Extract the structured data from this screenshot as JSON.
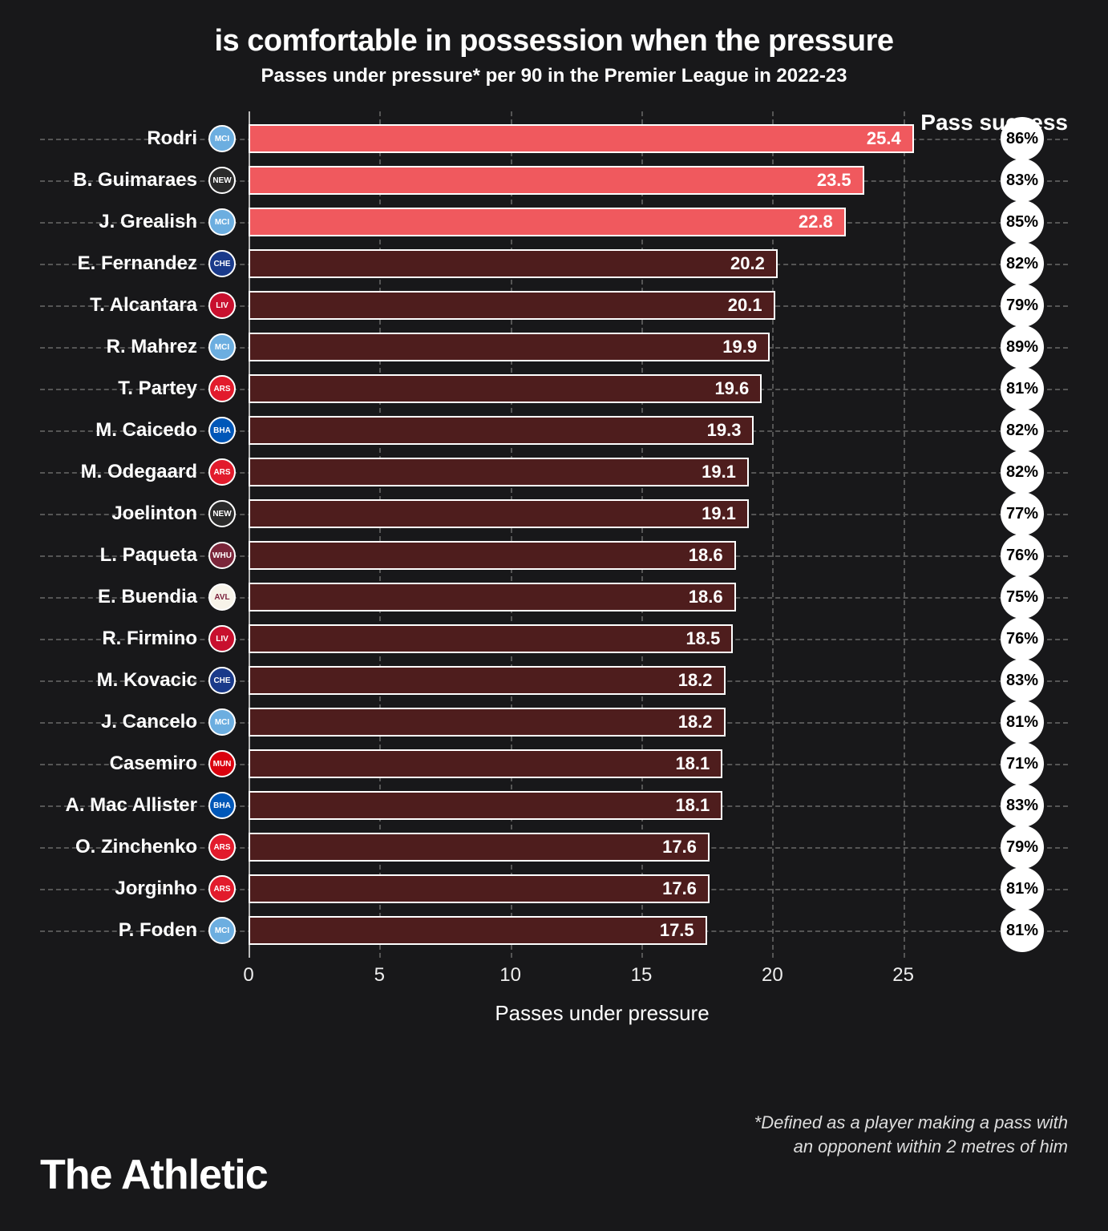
{
  "title": "is comfortable in possession when the pressure",
  "subtitle": "Passes under pressure* per 90 in the Premier League in 2022-23",
  "pass_success_header": "Pass success",
  "x_axis_label": "Passes under pressure",
  "footnote_line1": "*Defined as a player making a pass with",
  "footnote_line2": "an opponent within 2 metres of him",
  "brand": "The Athletic",
  "chart": {
    "type": "bar-horizontal",
    "x_min": 0,
    "x_max": 27,
    "x_ticks": [
      0,
      5,
      10,
      15,
      20,
      25
    ],
    "bar_border_color": "#ffffff",
    "grid_color": "#555555",
    "background_color": "#18181a",
    "highlight_color": "#f0595e",
    "normal_color": "#4e1d1d",
    "badge_bg": "#ffffff",
    "badge_text": "#000000",
    "bar_label_fontsize": 22,
    "player_label_fontsize": 24
  },
  "clubs": {
    "mancity": {
      "bg": "#6caee0",
      "abbr": "MCI"
    },
    "newcastle": {
      "bg": "#2b2b2b",
      "abbr": "NEW"
    },
    "chelsea": {
      "bg": "#1a3a8a",
      "abbr": "CHE"
    },
    "liverpool": {
      "bg": "#c8102e",
      "abbr": "LIV"
    },
    "arsenal": {
      "bg": "#e21b2c",
      "abbr": "ARS"
    },
    "brighton": {
      "bg": "#0057b8",
      "abbr": "BHA"
    },
    "westham": {
      "bg": "#7a263a",
      "abbr": "WHU"
    },
    "villa": {
      "bg": "#f7f3e9",
      "abbr": "AVL"
    },
    "manutd": {
      "bg": "#da020e",
      "abbr": "MUN"
    }
  },
  "players": [
    {
      "name": "Rodri",
      "club": "mancity",
      "value": 25.4,
      "success": "86%",
      "highlight": true
    },
    {
      "name": "B. Guimaraes",
      "club": "newcastle",
      "value": 23.5,
      "success": "83%",
      "highlight": true
    },
    {
      "name": "J. Grealish",
      "club": "mancity",
      "value": 22.8,
      "success": "85%",
      "highlight": true
    },
    {
      "name": "E. Fernandez",
      "club": "chelsea",
      "value": 20.2,
      "success": "82%",
      "highlight": false
    },
    {
      "name": "T. Alcantara",
      "club": "liverpool",
      "value": 20.1,
      "success": "79%",
      "highlight": false
    },
    {
      "name": "R. Mahrez",
      "club": "mancity",
      "value": 19.9,
      "success": "89%",
      "highlight": false
    },
    {
      "name": "T. Partey",
      "club": "arsenal",
      "value": 19.6,
      "success": "81%",
      "highlight": false
    },
    {
      "name": "M. Caicedo",
      "club": "brighton",
      "value": 19.3,
      "success": "82%",
      "highlight": false
    },
    {
      "name": "M. Odegaard",
      "club": "arsenal",
      "value": 19.1,
      "success": "82%",
      "highlight": false
    },
    {
      "name": "Joelinton",
      "club": "newcastle",
      "value": 19.1,
      "success": "77%",
      "highlight": false
    },
    {
      "name": "L. Paqueta",
      "club": "westham",
      "value": 18.6,
      "success": "76%",
      "highlight": false
    },
    {
      "name": "E. Buendia",
      "club": "villa",
      "value": 18.6,
      "success": "75%",
      "highlight": false
    },
    {
      "name": "R. Firmino",
      "club": "liverpool",
      "value": 18.5,
      "success": "76%",
      "highlight": false
    },
    {
      "name": "M. Kovacic",
      "club": "chelsea",
      "value": 18.2,
      "success": "83%",
      "highlight": false
    },
    {
      "name": "J. Cancelo",
      "club": "mancity",
      "value": 18.2,
      "success": "81%",
      "highlight": false
    },
    {
      "name": "Casemiro",
      "club": "manutd",
      "value": 18.1,
      "success": "71%",
      "highlight": false
    },
    {
      "name": "A. Mac Allister",
      "club": "brighton",
      "value": 18.1,
      "success": "83%",
      "highlight": false
    },
    {
      "name": "O. Zinchenko",
      "club": "arsenal",
      "value": 17.6,
      "success": "79%",
      "highlight": false
    },
    {
      "name": "Jorginho",
      "club": "arsenal",
      "value": 17.6,
      "success": "81%",
      "highlight": false
    },
    {
      "name": "P. Foden",
      "club": "mancity",
      "value": 17.5,
      "success": "81%",
      "highlight": false
    }
  ]
}
